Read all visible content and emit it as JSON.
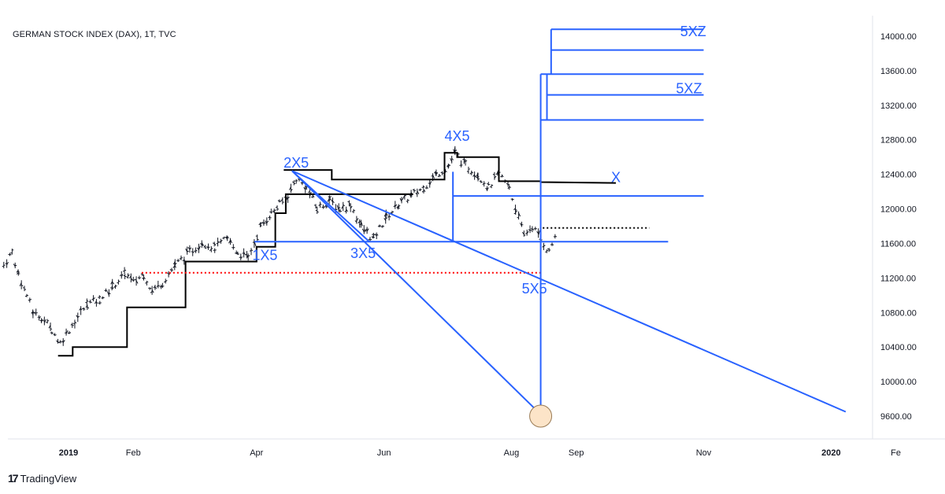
{
  "header": {
    "title": "GERMAN STOCK INDEX (DAX), 1T, TVC"
  },
  "footer": {
    "brand": "TradingView",
    "logo_icon": "tradingview-logo-icon"
  },
  "colors": {
    "annotation_blue": "#2962ff",
    "step_black": "#000000",
    "red_dotted": "#ff0000",
    "circle_fill": "#fce4c8",
    "circle_stroke": "#9a7b55"
  },
  "chart_data": {
    "type": "line",
    "title": "GERMAN STOCK INDEX (DAX), 1T, TVC",
    "xlabel": "",
    "ylabel": "",
    "ylim": [
      9350,
      14300
    ],
    "y_ticks": [
      "14000.00",
      "13600.00",
      "13200.00",
      "12800.00",
      "12400.00",
      "12000.00",
      "11600.00",
      "11200.00",
      "10800.00",
      "10400.00",
      "10000.00",
      "9600.00"
    ],
    "x_ticks": [
      "2019",
      "Feb",
      "Apr",
      "Jun",
      "Aug",
      "Sep",
      "Nov",
      "2020",
      "Fe"
    ],
    "grid": false,
    "annotations": [
      {
        "text": "1X5",
        "x": "2019-04-05",
        "y": 11410
      },
      {
        "text": "2X5",
        "x": "2019-04-20",
        "y": 12480
      },
      {
        "text": "3X5",
        "x": "2019-05-22",
        "y": 11430
      },
      {
        "text": "4X5",
        "x": "2019-07-06",
        "y": 12790
      },
      {
        "text": "5X5",
        "x": "2019-08-12",
        "y": 11020
      },
      {
        "text": "X",
        "x": "2019-09-20",
        "y": 12310
      },
      {
        "text": "5XZ",
        "x": "2019-10-27",
        "y": 14000
      },
      {
        "text": "5XZ",
        "x": "2019-10-25",
        "y": 13340
      }
    ],
    "series": [
      {
        "type": "step",
        "points": [
          [
            "2018-12-27",
            10300
          ],
          [
            "2019-01-03",
            10300
          ],
          [
            "2019-01-03",
            10400
          ],
          [
            "2019-01-29",
            10400
          ],
          [
            "2019-01-29",
            10860
          ],
          [
            "2019-02-26",
            10860
          ],
          [
            "2019-02-26",
            11390
          ],
          [
            "2019-04-01",
            11390
          ],
          [
            "2019-04-01",
            11560
          ],
          [
            "2019-04-10",
            11560
          ],
          [
            "2019-04-10",
            11950
          ],
          [
            "2019-04-15",
            11950
          ],
          [
            "2019-04-15",
            12170
          ],
          [
            "2019-05-29",
            12170
          ],
          [
            "2019-05-29",
            12170
          ],
          [
            "2019-06-15",
            12170
          ]
        ]
      },
      {
        "type": "step",
        "points": [
          [
            "2019-04-14",
            12450
          ],
          [
            "2019-05-07",
            12450
          ],
          [
            "2019-05-07",
            12340
          ],
          [
            "2019-06-30",
            12340
          ],
          [
            "2019-06-30",
            12650
          ],
          [
            "2019-07-06",
            12650
          ],
          [
            "2019-07-06",
            12600
          ],
          [
            "2019-07-26",
            12600
          ],
          [
            "2019-07-26",
            12320
          ],
          [
            "2019-08-15",
            12320
          ],
          [
            "2019-08-15",
            12310
          ],
          [
            "2019-09-20",
            12300
          ]
        ]
      }
    ],
    "price_path": [
      [
        "2018-12-01",
        11350
      ],
      [
        "2018-12-05",
        11500
      ],
      [
        "2018-12-08",
        11250
      ],
      [
        "2018-12-12",
        11000
      ],
      [
        "2018-12-15",
        10800
      ],
      [
        "2018-12-19",
        10750
      ],
      [
        "2018-12-24",
        10600
      ],
      [
        "2018-12-28",
        10450
      ],
      [
        "2019-01-04",
        10700
      ],
      [
        "2019-01-10",
        10900
      ],
      [
        "2019-01-16",
        10950
      ],
      [
        "2019-01-22",
        11100
      ],
      [
        "2019-01-28",
        11250
      ],
      [
        "2019-02-01",
        11150
      ],
      [
        "2019-02-06",
        11250
      ],
      [
        "2019-02-10",
        11050
      ],
      [
        "2019-02-15",
        11150
      ],
      [
        "2019-02-21",
        11350
      ],
      [
        "2019-02-28",
        11500
      ],
      [
        "2019-03-06",
        11620
      ],
      [
        "2019-03-12",
        11550
      ],
      [
        "2019-03-18",
        11650
      ],
      [
        "2019-03-23",
        11500
      ],
      [
        "2019-03-28",
        11430
      ],
      [
        "2019-04-03",
        11800
      ],
      [
        "2019-04-08",
        11950
      ],
      [
        "2019-04-12",
        12050
      ],
      [
        "2019-04-16",
        12150
      ],
      [
        "2019-04-20",
        12350
      ],
      [
        "2019-04-25",
        12250
      ],
      [
        "2019-04-30",
        12000
      ],
      [
        "2019-05-06",
        12100
      ],
      [
        "2019-05-11",
        12000
      ],
      [
        "2019-05-16",
        12050
      ],
      [
        "2019-05-21",
        11800
      ],
      [
        "2019-05-27",
        11650
      ],
      [
        "2019-06-02",
        11900
      ],
      [
        "2019-06-08",
        12050
      ],
      [
        "2019-06-14",
        12150
      ],
      [
        "2019-06-20",
        12250
      ],
      [
        "2019-06-26",
        12400
      ],
      [
        "2019-07-02",
        12500
      ],
      [
        "2019-07-05",
        12650
      ],
      [
        "2019-07-10",
        12500
      ],
      [
        "2019-07-16",
        12400
      ],
      [
        "2019-07-21",
        12250
      ],
      [
        "2019-07-26",
        12400
      ],
      [
        "2019-07-31",
        12250
      ],
      [
        "2019-08-03",
        12000
      ],
      [
        "2019-08-07",
        11700
      ],
      [
        "2019-08-11",
        11800
      ],
      [
        "2019-08-15",
        11650
      ],
      [
        "2019-08-19",
        11500
      ],
      [
        "2019-08-22",
        11700
      ]
    ]
  }
}
